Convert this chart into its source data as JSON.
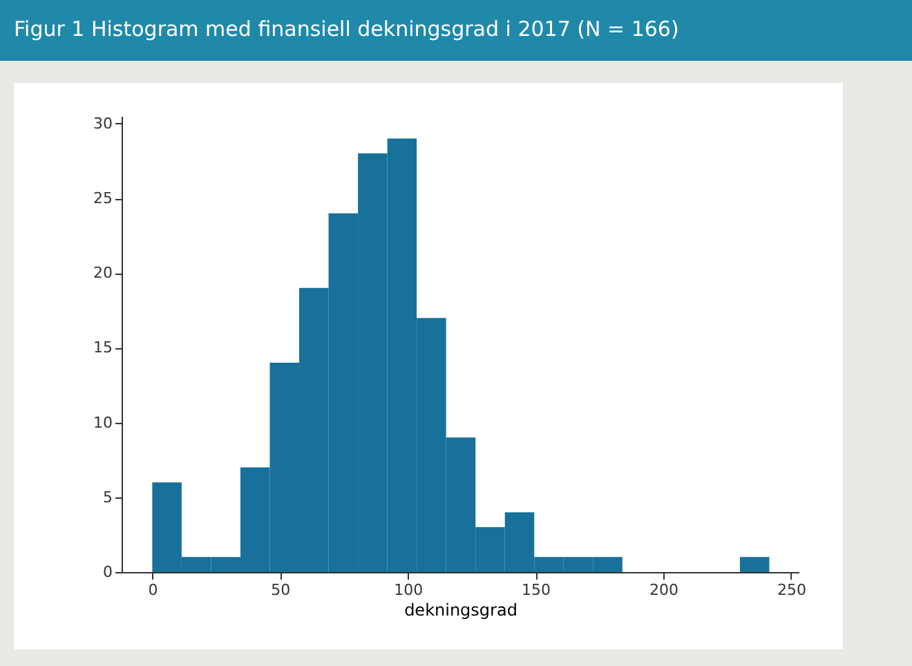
{
  "chart_data": {
    "type": "histogram",
    "title": "Figur 1 Histogram med finansiell dekningsgrad i 2017 (N = 166)",
    "xlabel": "dekningsgrad",
    "bins": [
      0,
      11.5,
      23,
      34.5,
      46,
      57.5,
      69,
      80.5,
      92,
      103.5,
      115,
      126.5,
      138,
      149.5,
      161,
      172.5,
      184,
      195.5,
      207,
      218.5,
      230,
      241.5
    ],
    "values": [
      6,
      1,
      1,
      7,
      14,
      19,
      24,
      28,
      29,
      17,
      9,
      3,
      4,
      1,
      1,
      1,
      0,
      0,
      0,
      0,
      1
    ],
    "color": "#17719b",
    "xlim": [
      -12,
      253
    ],
    "xticks": [
      0,
      50,
      100,
      150,
      200,
      250
    ],
    "ylim": [
      0,
      30.5
    ],
    "yticks": [
      0,
      5,
      10,
      15,
      20,
      25,
      30
    ],
    "grid": false
  }
}
